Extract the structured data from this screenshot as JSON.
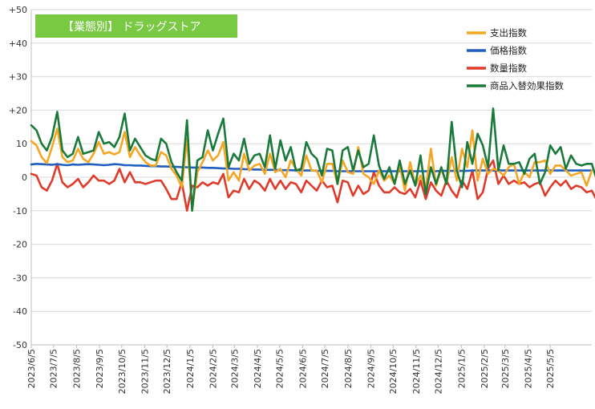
{
  "chart_data": {
    "type": "line",
    "title": "【業態別】 ドラッグストア",
    "title_bg_color": "#7ac943",
    "xlabel": "",
    "ylabel": "",
    "ylim": [
      -50,
      50
    ],
    "y_ticks": [
      50,
      40,
      30,
      20,
      10,
      0,
      -10,
      -20,
      -30,
      -40,
      -50
    ],
    "y_tick_labels": [
      "+50",
      "+40",
      "+30",
      "+20",
      "10",
      "0",
      "-10",
      "-20",
      "-30",
      "-40",
      "-50"
    ],
    "x_start": "2023-06-05",
    "x_tick_labels": [
      "2023/6/5",
      "2023/7/5",
      "2023/8/5",
      "2023/9/5",
      "2023/10/5",
      "2023/11/5",
      "2023/12/5",
      "2024/1/5",
      "2024/2/5",
      "2024/3/5",
      "2024/4/5",
      "2024/5/5",
      "2024/6/5",
      "2024/7/5",
      "2024/8/5",
      "2024/9/5",
      "2024/10/5",
      "2024/11/5",
      "2024/12/5",
      "2025/1/5",
      "2025/2/5",
      "2025/3/5",
      "2025/4/5",
      "2025/5/5"
    ],
    "grid": true,
    "legend_position": "top-right",
    "series": [
      {
        "name": "支出指数",
        "color": "#f5a623",
        "values": [
          10.8,
          9.5,
          6.0,
          4.2,
          9.0,
          14.5,
          6.0,
          4.5,
          5.0,
          8.5,
          5.5,
          4.5,
          7.0,
          10.5,
          7.0,
          7.5,
          6.8,
          7.5,
          13.5,
          6.0,
          9.0,
          6.5,
          4.5,
          3.5,
          3.5,
          7.5,
          6.5,
          2.5,
          0.5,
          -3.0,
          11.5,
          -9.5,
          1.5,
          4.5,
          8.0,
          5.0,
          6.5,
          10.5,
          -1.0,
          1.5,
          -1.0,
          7.0,
          2.0,
          3.5,
          4.0,
          1.0,
          7.0,
          1.5,
          2.5,
          0.0,
          5.0,
          2.5,
          0.5,
          6.5,
          2.0,
          2.0,
          -1.5,
          4.0,
          4.0,
          -2.0,
          5.0,
          1.5,
          1.0,
          9.0,
          1.0,
          0.0,
          -2.0,
          2.0,
          -1.0,
          0.5,
          -2.0,
          3.5,
          -4.0,
          4.5,
          -2.5,
          0.5,
          -3.5,
          8.5,
          -2.5,
          2.5,
          -2.0,
          6.0,
          -1.0,
          8.5,
          3.0,
          14.0,
          -1.0,
          5.5,
          1.0,
          2.5,
          2.0,
          0.5,
          3.0,
          4.0,
          -2.0,
          1.5,
          0.0,
          4.5,
          4.5,
          5.0,
          1.0,
          3.5,
          3.5,
          2.0,
          0.5,
          1.0,
          1.5,
          -2.5,
          2.0
        ]
      },
      {
        "name": "価格指数",
        "color": "#1f5fbf",
        "values": [
          3.8,
          4.0,
          3.9,
          3.8,
          3.7,
          3.9,
          3.7,
          3.6,
          3.8,
          3.7,
          3.8,
          3.9,
          3.8,
          3.7,
          3.6,
          3.7,
          3.9,
          3.8,
          3.6,
          3.6,
          3.5,
          3.5,
          3.4,
          3.3,
          3.3,
          3.2,
          3.2,
          3.1,
          3.1,
          3.0,
          3.0,
          2.9,
          2.9,
          2.9,
          2.8,
          2.8,
          2.7,
          2.6,
          2.6,
          2.5,
          2.5,
          2.4,
          2.4,
          2.3,
          2.3,
          2.2,
          2.2,
          2.2,
          2.1,
          2.1,
          2.1,
          2.0,
          2.0,
          2.0,
          2.0,
          1.9,
          1.9,
          1.9,
          1.9,
          1.8,
          1.8,
          1.8,
          1.8,
          1.8,
          1.8,
          1.8,
          1.8,
          1.8,
          1.8,
          1.8,
          1.8,
          1.8,
          1.8,
          1.8,
          1.8,
          1.8,
          1.8,
          1.8,
          1.8,
          1.9,
          1.9,
          1.9,
          1.9,
          1.9,
          1.9,
          2.0,
          2.0,
          2.0,
          2.0,
          2.0,
          2.0,
          2.0,
          2.0,
          2.0,
          2.0,
          2.0,
          2.0,
          2.0,
          2.0,
          2.0,
          2.0,
          2.0,
          2.0,
          2.0,
          2.0,
          2.0,
          2.0,
          2.0,
          2.0
        ]
      },
      {
        "name": "数量指数",
        "color": "#e03a2a",
        "values": [
          1.0,
          0.5,
          -3.0,
          -4.0,
          -1.0,
          4.0,
          -1.5,
          -3.0,
          -2.0,
          -0.5,
          -3.0,
          -1.5,
          0.5,
          -1.0,
          -1.0,
          -2.0,
          -1.0,
          2.5,
          -1.5,
          1.5,
          -1.5,
          -1.5,
          -2.0,
          -1.5,
          -1.0,
          -1.0,
          -3.5,
          -6.5,
          -6.5,
          -1.5,
          -10.0,
          -2.5,
          -3.0,
          -1.5,
          -2.5,
          -1.5,
          -2.0,
          1.0,
          -6.0,
          -4.0,
          -4.5,
          -0.5,
          -3.5,
          -1.0,
          -2.0,
          -4.0,
          -0.5,
          -3.5,
          -1.0,
          -3.5,
          -1.5,
          -2.0,
          -4.5,
          -1.0,
          -2.5,
          -4.0,
          -1.0,
          -3.0,
          -2.5,
          -7.5,
          -1.0,
          -1.5,
          -5.5,
          -2.5,
          -5.0,
          -4.0,
          1.5,
          -2.5,
          -4.5,
          -4.5,
          -3.0,
          -4.5,
          -5.0,
          -3.5,
          -6.0,
          -1.0,
          -6.5,
          -1.5,
          -4.0,
          -5.5,
          -1.0,
          -4.0,
          -6.0,
          -1.0,
          -3.5,
          2.0,
          -6.5,
          -4.5,
          2.5,
          5.0,
          -2.0,
          0.5,
          -2.0,
          -1.0,
          -2.0,
          -1.5,
          -3.0,
          -2.0,
          -1.5,
          -5.5,
          -3.0,
          -1.0,
          -2.5,
          -1.0,
          -3.5,
          -2.5,
          -3.0,
          -4.5,
          -4.0,
          -7.0,
          -3.5
        ]
      },
      {
        "name": "商品入替効果指数",
        "color": "#1a7a3c",
        "values": [
          15.5,
          14.0,
          10.0,
          8.0,
          12.0,
          19.5,
          8.0,
          6.0,
          7.0,
          12.0,
          7.0,
          7.5,
          8.0,
          13.5,
          10.0,
          10.5,
          9.0,
          12.0,
          19.0,
          8.0,
          11.5,
          9.0,
          6.5,
          5.5,
          5.0,
          11.5,
          10.0,
          4.5,
          1.5,
          -1.0,
          17.0,
          -10.0,
          5.0,
          6.0,
          14.0,
          8.0,
          13.0,
          17.5,
          3.0,
          7.0,
          5.0,
          11.5,
          4.0,
          6.5,
          7.0,
          3.0,
          12.5,
          2.5,
          11.0,
          5.0,
          9.0,
          2.0,
          2.5,
          10.5,
          7.0,
          5.5,
          0.5,
          8.5,
          8.0,
          -2.0,
          8.0,
          9.0,
          2.0,
          8.0,
          3.0,
          4.0,
          12.5,
          3.5,
          -0.5,
          3.0,
          -2.0,
          5.0,
          -2.0,
          2.0,
          -2.5,
          6.5,
          -5.0,
          3.0,
          -2.0,
          3.0,
          -2.0,
          16.5,
          2.0,
          -3.0,
          10.5,
          4.0,
          13.0,
          9.5,
          3.0,
          20.5,
          2.0,
          9.5,
          4.0,
          4.0,
          4.5,
          1.0,
          5.5,
          7.0,
          -2.0,
          1.5,
          9.5,
          7.0,
          9.0,
          2.5,
          6.5,
          4.0,
          3.5,
          4.0,
          4.0,
          -1.0,
          5.0
        ]
      }
    ]
  }
}
